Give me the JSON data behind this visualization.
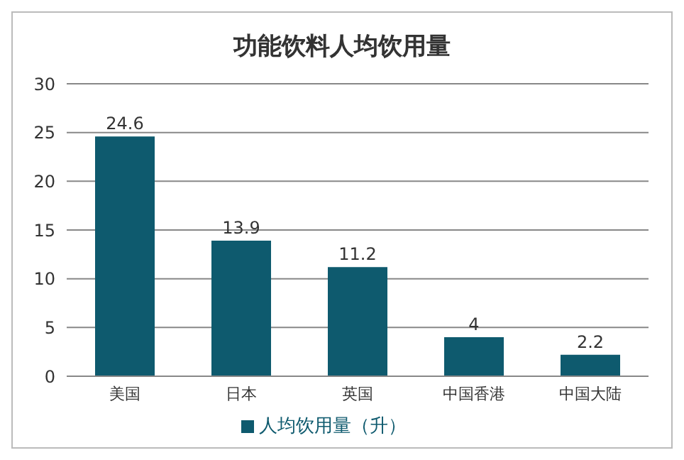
{
  "chart_data": {
    "type": "bar",
    "title": "功能饮料人均饮用量",
    "categories": [
      "美国",
      "日本",
      "英国",
      "中国香港",
      "中国大陆"
    ],
    "series": [
      {
        "name": "人均饮用量（升）",
        "color": "#0e5a6e",
        "values": [
          24.6,
          13.9,
          11.2,
          4,
          2.2
        ]
      }
    ],
    "ylim": [
      0,
      30
    ],
    "yticks": [
      0,
      5,
      10,
      15,
      20,
      25,
      30
    ],
    "grid": "y",
    "legend": "bottom",
    "data_labels": true
  }
}
